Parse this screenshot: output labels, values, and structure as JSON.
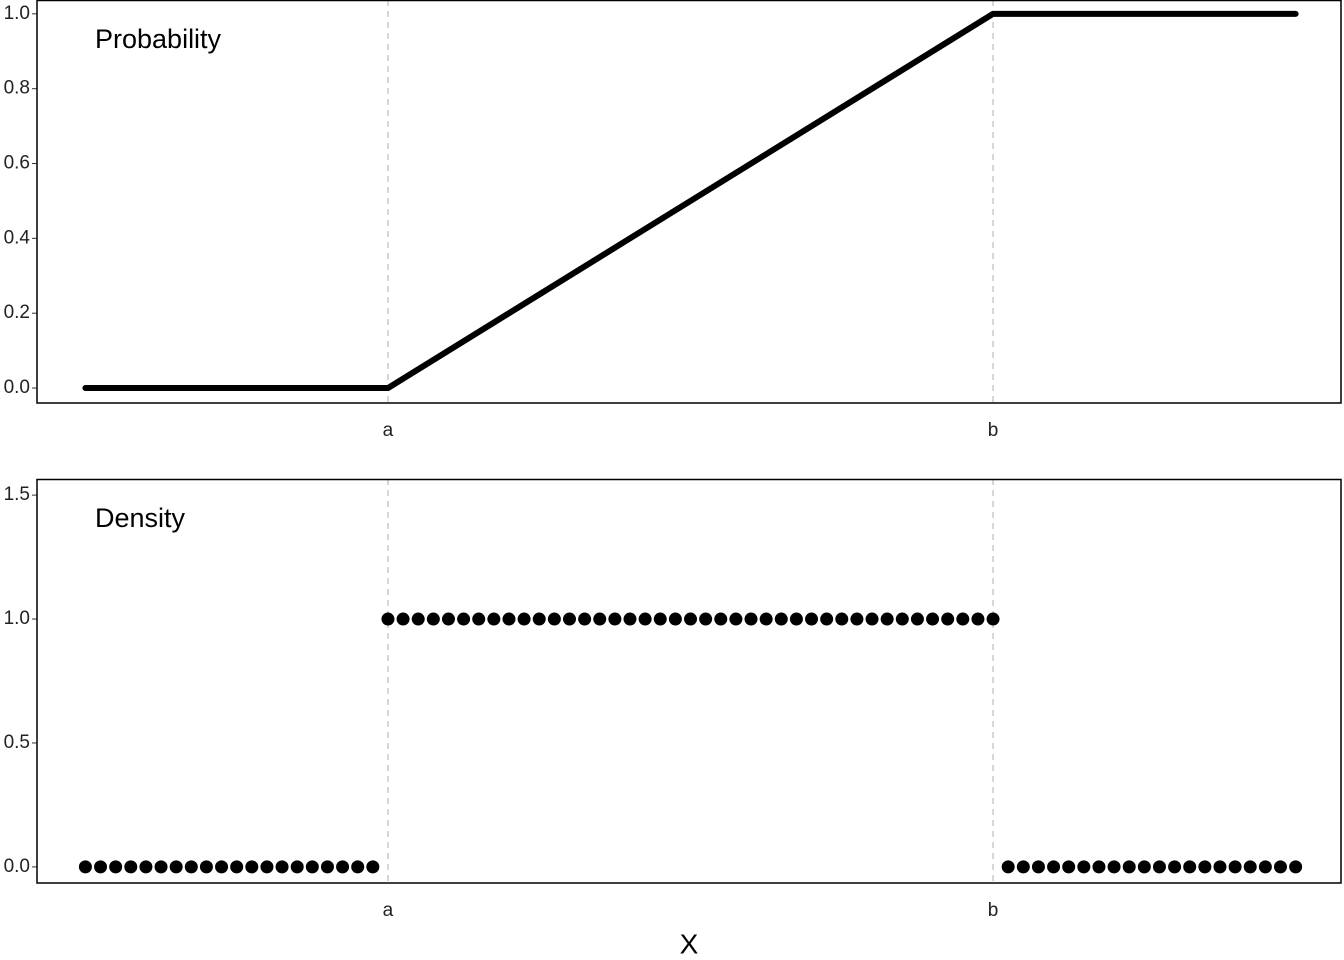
{
  "chart_data": [
    {
      "type": "line",
      "annotation": "Probability",
      "x": [
        -0.5,
        0,
        1,
        1.5
      ],
      "values": [
        0,
        0,
        1,
        1
      ],
      "color": "#000000",
      "xlim": [
        -0.58,
        1.575
      ],
      "xticks": [
        {
          "value": 0,
          "label": "a"
        },
        {
          "value": 1,
          "label": "b"
        }
      ],
      "ylim": [
        -0.04,
        1.037
      ],
      "yticks": [
        {
          "value": 0,
          "label": "0.0"
        },
        0.2,
        0.4,
        0.6,
        0.8,
        {
          "value": 1,
          "label": "1.0"
        }
      ],
      "grid": "x"
    },
    {
      "type": "scatter",
      "annotation": "Density",
      "xlabel": "X",
      "x": [
        -0.5,
        -0.475,
        -0.45,
        -0.425,
        -0.4,
        -0.375,
        -0.35,
        -0.325,
        -0.3,
        -0.275,
        -0.25,
        -0.225,
        -0.2,
        -0.175,
        -0.15,
        -0.125,
        -0.1,
        -0.075,
        -0.05,
        -0.025,
        0,
        0.025,
        0.05,
        0.075,
        0.1,
        0.125,
        0.15,
        0.175,
        0.2,
        0.225,
        0.25,
        0.275,
        0.3,
        0.325,
        0.35,
        0.375,
        0.4,
        0.425,
        0.45,
        0.475,
        0.5,
        0.525,
        0.55,
        0.575,
        0.6,
        0.625,
        0.65,
        0.675,
        0.7,
        0.725,
        0.75,
        0.775,
        0.8,
        0.825,
        0.85,
        0.875,
        0.9,
        0.925,
        0.95,
        0.975,
        1,
        1.025,
        1.05,
        1.075,
        1.1,
        1.125,
        1.15,
        1.175,
        1.2,
        1.225,
        1.25,
        1.275,
        1.3,
        1.325,
        1.35,
        1.375,
        1.4,
        1.425,
        1.45,
        1.475,
        1.5
      ],
      "values": [
        0,
        0,
        0,
        0,
        0,
        0,
        0,
        0,
        0,
        0,
        0,
        0,
        0,
        0,
        0,
        0,
        0,
        0,
        0,
        0,
        1,
        1,
        1,
        1,
        1,
        1,
        1,
        1,
        1,
        1,
        1,
        1,
        1,
        1,
        1,
        1,
        1,
        1,
        1,
        1,
        1,
        1,
        1,
        1,
        1,
        1,
        1,
        1,
        1,
        1,
        1,
        1,
        1,
        1,
        1,
        1,
        1,
        1,
        1,
        1,
        1,
        0,
        0,
        0,
        0,
        0,
        0,
        0,
        0,
        0,
        0,
        0,
        0,
        0,
        0,
        0,
        0,
        0,
        0,
        0,
        0
      ],
      "color": "#000000",
      "xlim": [
        -0.58,
        1.575
      ],
      "xticks": [
        {
          "value": 0,
          "label": "a"
        },
        {
          "value": 1,
          "label": "b"
        }
      ],
      "ylim": [
        -0.065,
        1.565
      ],
      "yticks": [
        {
          "value": 0,
          "label": "0.0"
        },
        0.5,
        {
          "value": 1,
          "label": "1.0"
        },
        1.5
      ],
      "grid": "x"
    }
  ]
}
